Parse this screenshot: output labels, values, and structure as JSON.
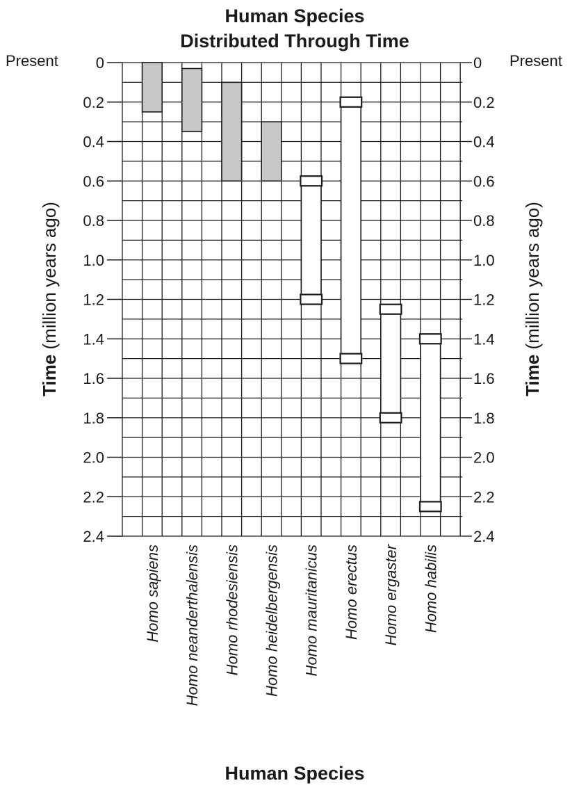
{
  "chart_data": {
    "type": "bar",
    "title": [
      "Human Species",
      "Distributed Through Time"
    ],
    "xlabel": "Human Species",
    "ylabel": {
      "bold": "Time",
      "rest": " (million years ago)"
    },
    "present_label": "Present",
    "ylim": [
      0,
      2.4
    ],
    "y_ticks": [
      "0",
      "0.2",
      "0.4",
      "0.6",
      "0.8",
      "1.0",
      "1.2",
      "1.4",
      "1.6",
      "1.8",
      "2.0",
      "2.2",
      "2.4"
    ],
    "categories": [
      "Homo sapiens",
      "Homo neanderthalensis",
      "Homo rhodesiensis",
      "Homo heidelbergensis",
      "Homo mauritanicus",
      "Homo erectus",
      "Homo ergaster",
      "Homo habilis"
    ],
    "bar_styles": [
      "shaded",
      "shaded",
      "shaded",
      "shaded",
      "open",
      "open",
      "open",
      "open"
    ],
    "ranges": [
      [
        0,
        0.25
      ],
      [
        0.03,
        0.35
      ],
      [
        0.1,
        0.6
      ],
      [
        0.3,
        0.6
      ],
      [
        0.6,
        1.2
      ],
      [
        0.2,
        1.5
      ],
      [
        1.25,
        1.8
      ],
      [
        1.4,
        2.25
      ]
    ],
    "colors": {
      "shaded_fill": "#c8c8c8",
      "open_fill": "#ffffff",
      "line": "#1a1a1a"
    }
  }
}
